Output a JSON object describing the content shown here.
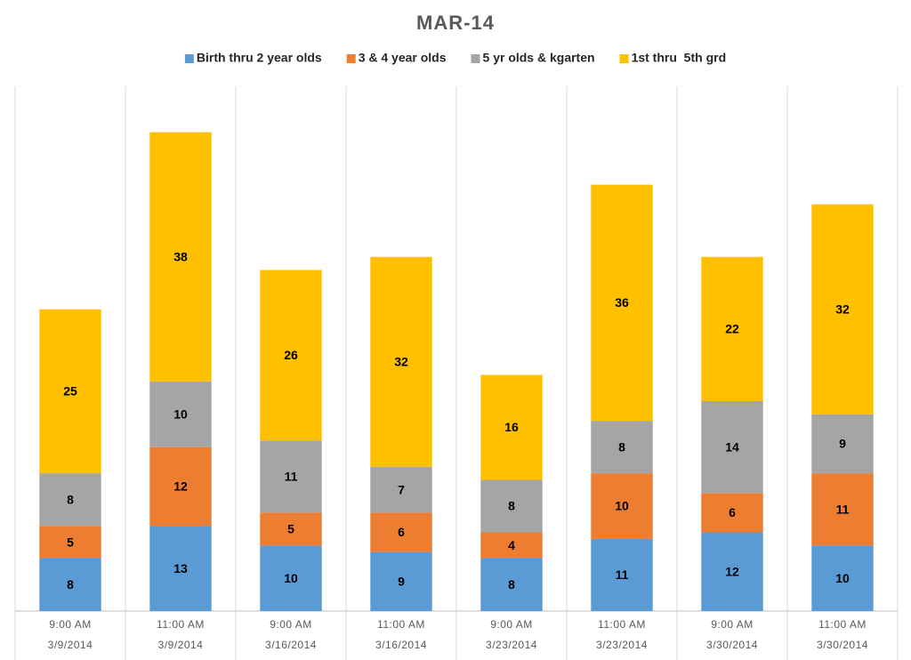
{
  "chart_data": {
    "type": "stacked_bar",
    "title": "MAR-14",
    "categories": [
      "9:00 AM",
      "11:00 AM",
      "9:00 AM",
      "11:00 AM",
      "9:00 AM",
      "11:00 AM",
      "9:00 AM",
      "11:00 AM"
    ],
    "category_groups": [
      "3/9/2014",
      "3/9/2014",
      "3/16/2014",
      "3/16/2014",
      "3/23/2014",
      "3/23/2014",
      "3/30/2014",
      "3/30/2014"
    ],
    "series": [
      {
        "name": "Birth thru 2 year olds",
        "color": "#5b9bd5",
        "values": [
          8,
          13,
          10,
          9,
          8,
          11,
          12,
          10
        ]
      },
      {
        "name": "3 & 4 year olds",
        "color": "#ed7d31",
        "values": [
          5,
          12,
          5,
          6,
          4,
          10,
          6,
          11
        ]
      },
      {
        "name": "5 yr olds & kgarten",
        "color": "#a5a5a5",
        "values": [
          8,
          10,
          11,
          7,
          8,
          8,
          14,
          9
        ]
      },
      {
        "name": "1st thru  5th grd",
        "color": "#ffc000",
        "values": [
          25,
          38,
          26,
          32,
          16,
          36,
          22,
          32
        ]
      }
    ],
    "ylim": [
      0,
      80
    ],
    "legend": "top"
  }
}
